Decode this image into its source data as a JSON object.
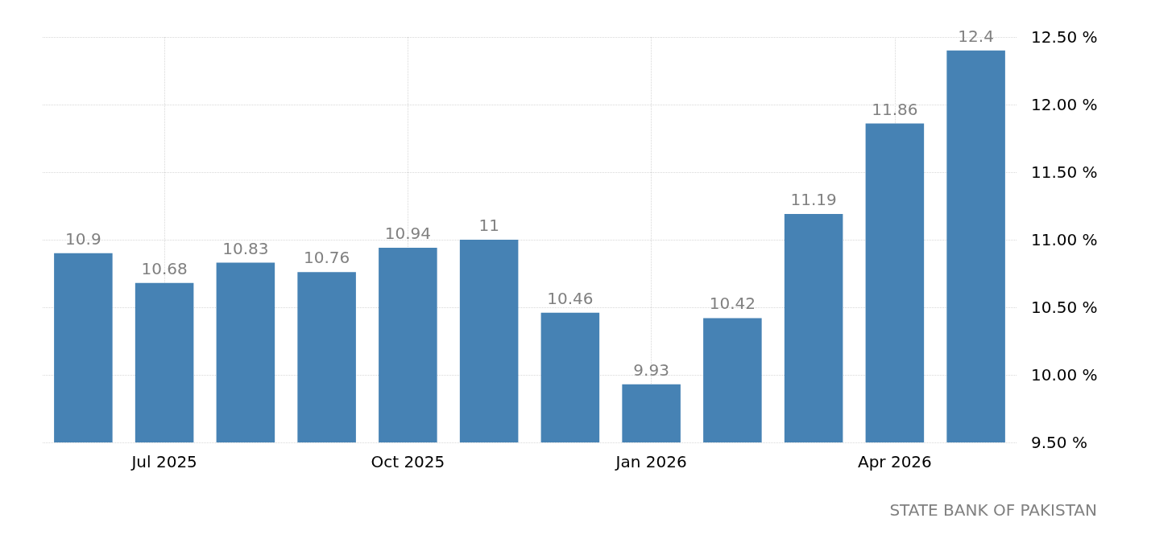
{
  "chart_data": {
    "type": "bar",
    "categories": [
      null,
      "Jul 2025",
      null,
      null,
      "Oct 2025",
      null,
      null,
      "Jan 2026",
      null,
      null,
      "Apr 2026",
      null
    ],
    "values": [
      10.9,
      10.68,
      10.83,
      10.76,
      10.94,
      11,
      10.46,
      9.93,
      10.42,
      11.19,
      11.86,
      12.4
    ],
    "color": "#4682b4",
    "ylim": [
      9.5,
      12.5
    ],
    "yticks": [
      {
        "value": 9.5,
        "label": "9.50 %"
      },
      {
        "value": 10,
        "label": "10.00 %"
      },
      {
        "value": 10.5,
        "label": "10.50 %"
      },
      {
        "value": 11,
        "label": "11.00 %"
      },
      {
        "value": 11.5,
        "label": "11.50 %"
      },
      {
        "value": 12,
        "label": "12.00 %"
      },
      {
        "value": 12.5,
        "label": "12.50 %"
      }
    ],
    "grid": true,
    "data_labels": true,
    "annotations": [
      "STATE BANK OF PAKISTAN"
    ]
  }
}
